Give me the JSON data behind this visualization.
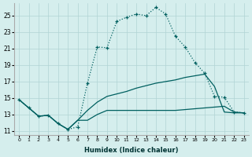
{
  "xlabel": "Humidex (Indice chaleur)",
  "bg_color": "#d5eeed",
  "grid_color": "#b0d4d4",
  "line_color": "#006060",
  "xlim": [
    -0.5,
    23.5
  ],
  "ylim": [
    10.5,
    26.5
  ],
  "xticks": [
    0,
    1,
    2,
    3,
    4,
    5,
    6,
    7,
    8,
    9,
    10,
    11,
    12,
    13,
    14,
    15,
    16,
    17,
    18,
    19,
    20,
    21,
    22,
    23
  ],
  "yticks": [
    11,
    13,
    15,
    17,
    19,
    21,
    23,
    25
  ],
  "line1_x": [
    0,
    1,
    2,
    3,
    4,
    5,
    6,
    7,
    8,
    9,
    10,
    11,
    12,
    13,
    14,
    15,
    16,
    17,
    18,
    19,
    20,
    21,
    22,
    23
  ],
  "line1_y": [
    14.8,
    13.8,
    12.8,
    12.9,
    11.9,
    11.2,
    11.5,
    16.8,
    21.2,
    21.1,
    24.3,
    24.8,
    25.2,
    25.0,
    26.0,
    25.2,
    22.5,
    21.2,
    19.3,
    18.0,
    15.2,
    15.1,
    13.3,
    13.2
  ],
  "line2_x": [
    0,
    2,
    3,
    4,
    5,
    6,
    7,
    8,
    9,
    10,
    11,
    12,
    13,
    14,
    15,
    16,
    17,
    18,
    19,
    20,
    21,
    22,
    23
  ],
  "line2_y": [
    14.8,
    12.8,
    12.9,
    11.9,
    11.2,
    12.3,
    12.3,
    13.0,
    13.5,
    13.5,
    13.5,
    13.5,
    13.5,
    13.5,
    13.5,
    13.5,
    13.6,
    13.7,
    13.8,
    13.9,
    14.0,
    13.3,
    13.2
  ],
  "line3_x": [
    0,
    2,
    3,
    4,
    5,
    6,
    7,
    8,
    9,
    10,
    11,
    12,
    13,
    14,
    15,
    16,
    17,
    18,
    19,
    20,
    21,
    22,
    23
  ],
  "line3_y": [
    14.8,
    12.8,
    12.9,
    11.9,
    11.2,
    12.3,
    13.5,
    14.5,
    15.2,
    15.5,
    15.8,
    16.2,
    16.5,
    16.8,
    17.0,
    17.2,
    17.5,
    17.7,
    17.9,
    16.4,
    13.3,
    13.2,
    13.2
  ]
}
